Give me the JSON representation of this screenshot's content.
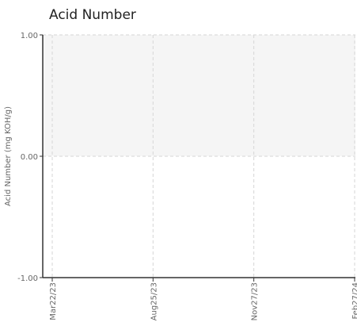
{
  "chart_data": {
    "type": "line",
    "title": "Acid Number",
    "xlabel": "",
    "ylabel": "Acid Number (mg KOH/g)",
    "x_ticks": [
      "Mar22/23",
      "Aug25/23",
      "Nov27/23",
      "Feb27/24"
    ],
    "y_ticks": [
      "1.00",
      "0.00",
      "-1.00"
    ],
    "ylim": [
      -1,
      1
    ],
    "series": [],
    "grid": true,
    "shaded_band": [
      0,
      1
    ],
    "colors": {
      "band": "#f5f5f5",
      "grid": "#d6d6d6",
      "axis": "#333333",
      "text": "#666666"
    }
  }
}
